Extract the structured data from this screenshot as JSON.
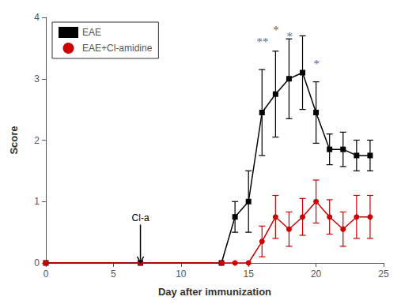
{
  "chart_data": {
    "type": "line",
    "xlabel": "Day after immunization",
    "ylabel": "Score",
    "series": [
      {
        "name": "EAE",
        "color": "#000000",
        "marker": "square",
        "x": [
          0,
          7,
          13,
          14,
          15,
          16,
          17,
          18,
          19,
          20,
          21,
          22,
          23,
          24
        ],
        "values": [
          0,
          0,
          0,
          0.75,
          1.0,
          2.45,
          2.75,
          3.0,
          3.1,
          2.45,
          1.85,
          1.85,
          1.75,
          1.75
        ],
        "yerr": [
          0,
          0,
          0,
          0.25,
          0.5,
          0.7,
          0.7,
          0.65,
          0.6,
          0.5,
          0.25,
          0.28,
          0.25,
          0.25
        ]
      },
      {
        "name": "EAE+Cl-amidine",
        "color": "#cc0000",
        "marker": "circle",
        "x": [
          0,
          7,
          13,
          14,
          15,
          16,
          17,
          18,
          19,
          20,
          21,
          22,
          23,
          24
        ],
        "values": [
          0,
          0,
          0,
          0,
          0,
          0.35,
          0.75,
          0.55,
          0.75,
          1.0,
          0.75,
          0.55,
          0.75,
          0.75
        ],
        "yerr": [
          0,
          0,
          0,
          0,
          0,
          0.25,
          0.35,
          0.28,
          0.3,
          0.35,
          0.28,
          0.28,
          0.35,
          0.35
        ]
      }
    ],
    "annotations": [
      {
        "text": "**",
        "x": 16,
        "y": 3.5,
        "color": "#666666"
      },
      {
        "text": "*",
        "x": 17,
        "y": 3.7,
        "color": "#666666"
      },
      {
        "text": "*",
        "x": 18,
        "y": 3.6,
        "color": "#666666"
      },
      {
        "text": "*",
        "x": 20,
        "y": 3.15,
        "color": "#666666"
      },
      {
        "text": "Cl-a",
        "x": 7,
        "y": 0.65,
        "arrow_to": [
          7,
          0.0
        ],
        "color": "#000000"
      }
    ],
    "xlim": [
      0,
      25
    ],
    "ylim": [
      0,
      4.0
    ],
    "xticks": [
      0,
      5,
      10,
      15,
      20,
      25
    ],
    "yticks": [
      0,
      1,
      2,
      3,
      4
    ],
    "grid": false,
    "legend": "upper left"
  }
}
